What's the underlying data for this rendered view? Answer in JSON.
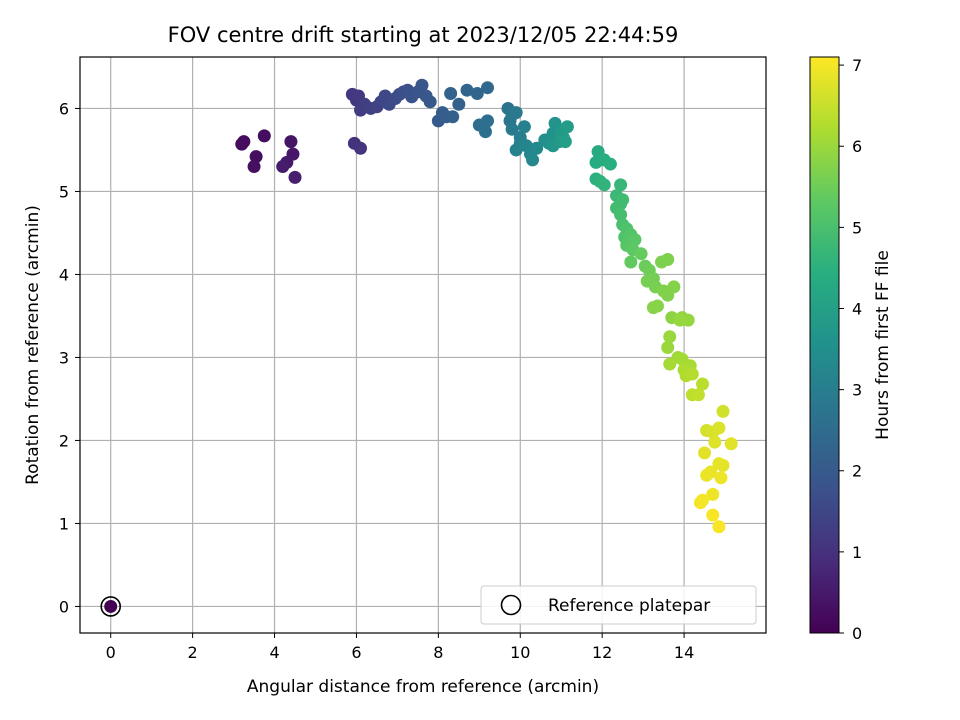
{
  "chart_data": {
    "type": "scatter",
    "title": "FOV centre drift starting at 2023/12/05 22:44:59",
    "xlabel": "Angular distance from reference (arcmin)",
    "ylabel": "Rotation from reference (arcmin)",
    "xlim": [
      -0.75,
      16.0
    ],
    "ylim": [
      -0.32,
      6.62
    ],
    "xticks": [
      0,
      2,
      4,
      6,
      8,
      10,
      12,
      14
    ],
    "yticks": [
      0,
      1,
      2,
      3,
      4,
      5,
      6
    ],
    "grid": true,
    "legend": {
      "placement": "lower-right",
      "entries": [
        "Reference platepar"
      ]
    },
    "reference_point": {
      "x": 0,
      "y": 0
    },
    "colorbar": {
      "label": "Hours from first FF file",
      "colormap": "viridis",
      "range": [
        0,
        7.1
      ],
      "ticks": [
        0,
        1,
        2,
        3,
        4,
        5,
        6,
        7
      ]
    },
    "points": [
      [
        0,
        0,
        0.0
      ],
      [
        3.2,
        5.57,
        0.2
      ],
      [
        3.25,
        5.6,
        0.22
      ],
      [
        3.75,
        5.67,
        0.25
      ],
      [
        3.55,
        5.42,
        0.28
      ],
      [
        3.5,
        5.3,
        0.3
      ],
      [
        4.4,
        5.6,
        0.4
      ],
      [
        4.45,
        5.45,
        0.45
      ],
      [
        4.3,
        5.35,
        0.5
      ],
      [
        4.2,
        5.3,
        0.55
      ],
      [
        4.5,
        5.17,
        0.6
      ],
      [
        5.95,
        5.58,
        1.0
      ],
      [
        6.1,
        5.52,
        1.05
      ],
      [
        5.9,
        6.17,
        1.1
      ],
      [
        6.0,
        6.1,
        1.15
      ],
      [
        6.05,
        6.15,
        1.2
      ],
      [
        6.1,
        5.98,
        1.25
      ],
      [
        6.2,
        6.05,
        1.3
      ],
      [
        6.35,
        6.0,
        1.35
      ],
      [
        6.5,
        6.02,
        1.4
      ],
      [
        6.6,
        6.08,
        1.45
      ],
      [
        6.7,
        6.15,
        1.5
      ],
      [
        6.8,
        6.05,
        1.55
      ],
      [
        6.95,
        6.12,
        1.6
      ],
      [
        7.05,
        6.17,
        1.65
      ],
      [
        7.15,
        6.2,
        1.7
      ],
      [
        7.25,
        6.22,
        1.75
      ],
      [
        7.35,
        6.14,
        1.8
      ],
      [
        7.5,
        6.2,
        1.85
      ],
      [
        7.6,
        6.28,
        1.9
      ],
      [
        7.7,
        6.15,
        1.92
      ],
      [
        7.8,
        6.08,
        1.95
      ],
      [
        8.0,
        5.85,
        2.0
      ],
      [
        8.1,
        5.95,
        2.05
      ],
      [
        8.2,
        5.9,
        2.1
      ],
      [
        8.35,
        5.9,
        2.15
      ],
      [
        8.5,
        6.05,
        2.2
      ],
      [
        8.3,
        6.18,
        2.25
      ],
      [
        8.7,
        6.22,
        2.3
      ],
      [
        8.95,
        6.18,
        2.35
      ],
      [
        9.2,
        6.25,
        2.4
      ],
      [
        9.0,
        5.8,
        2.5
      ],
      [
        9.2,
        5.85,
        2.55
      ],
      [
        9.15,
        5.72,
        2.6
      ],
      [
        9.7,
        6.0,
        2.7
      ],
      [
        9.75,
        5.85,
        2.75
      ],
      [
        9.8,
        5.92,
        2.8
      ],
      [
        9.9,
        5.95,
        2.85
      ],
      [
        9.8,
        5.75,
        2.9
      ],
      [
        10.0,
        5.65,
        3.0
      ],
      [
        10.1,
        5.78,
        3.05
      ],
      [
        10.0,
        5.58,
        3.1
      ],
      [
        9.9,
        5.5,
        3.15
      ],
      [
        10.15,
        5.55,
        3.2
      ],
      [
        10.25,
        5.45,
        3.25
      ],
      [
        10.3,
        5.38,
        3.3
      ],
      [
        10.4,
        5.52,
        3.35
      ],
      [
        10.6,
        5.62,
        3.5
      ],
      [
        10.7,
        5.58,
        3.55
      ],
      [
        10.8,
        5.7,
        3.6
      ],
      [
        10.85,
        5.82,
        3.65
      ],
      [
        10.8,
        5.55,
        3.7
      ],
      [
        10.95,
        5.6,
        3.75
      ],
      [
        11.0,
        5.72,
        3.8
      ],
      [
        11.05,
        5.65,
        3.85
      ],
      [
        11.15,
        5.78,
        3.9
      ],
      [
        11.1,
        5.6,
        3.95
      ],
      [
        11.9,
        5.48,
        4.3
      ],
      [
        11.85,
        5.35,
        4.35
      ],
      [
        12.05,
        5.38,
        4.4
      ],
      [
        12.2,
        5.33,
        4.45
      ],
      [
        11.85,
        5.15,
        4.5
      ],
      [
        11.95,
        5.12,
        4.55
      ],
      [
        12.05,
        5.08,
        4.6
      ],
      [
        12.45,
        5.08,
        4.7
      ],
      [
        12.35,
        4.95,
        4.75
      ],
      [
        12.45,
        4.85,
        4.8
      ],
      [
        12.5,
        4.9,
        4.85
      ],
      [
        12.35,
        4.8,
        4.9
      ],
      [
        12.45,
        4.72,
        4.95
      ],
      [
        12.5,
        4.6,
        5.0
      ],
      [
        12.6,
        4.55,
        5.05
      ],
      [
        12.55,
        4.45,
        5.1
      ],
      [
        12.7,
        4.48,
        5.15
      ],
      [
        12.6,
        4.35,
        5.2
      ],
      [
        12.8,
        4.42,
        5.25
      ],
      [
        12.75,
        4.3,
        5.3
      ],
      [
        12.7,
        4.15,
        5.35
      ],
      [
        12.95,
        4.25,
        5.4
      ],
      [
        13.05,
        4.1,
        5.45
      ],
      [
        13.15,
        4.05,
        5.5
      ],
      [
        13.25,
        3.95,
        5.55
      ],
      [
        13.1,
        3.92,
        5.6
      ],
      [
        13.3,
        3.85,
        5.62
      ],
      [
        13.45,
        4.15,
        5.65
      ],
      [
        13.6,
        4.18,
        5.68
      ],
      [
        13.5,
        3.8,
        5.7
      ],
      [
        13.6,
        3.75,
        5.72
      ],
      [
        13.75,
        3.85,
        5.75
      ],
      [
        13.35,
        3.62,
        5.78
      ],
      [
        13.25,
        3.6,
        5.8
      ],
      [
        13.7,
        3.48,
        5.85
      ],
      [
        13.95,
        3.48,
        5.9
      ],
      [
        14.1,
        3.45,
        5.92
      ],
      [
        13.9,
        3.45,
        5.95
      ],
      [
        13.65,
        3.25,
        5.98
      ],
      [
        13.6,
        3.12,
        6.0
      ],
      [
        13.85,
        3.0,
        6.05
      ],
      [
        13.95,
        2.98,
        6.1
      ],
      [
        13.65,
        2.92,
        6.12
      ],
      [
        14.15,
        2.9,
        6.15
      ],
      [
        14.0,
        2.85,
        6.2
      ],
      [
        14.05,
        2.78,
        6.25
      ],
      [
        14.2,
        2.8,
        6.3
      ],
      [
        14.45,
        2.68,
        6.35
      ],
      [
        14.2,
        2.55,
        6.4
      ],
      [
        14.35,
        2.55,
        6.45
      ],
      [
        14.95,
        2.35,
        6.6
      ],
      [
        14.55,
        2.12,
        6.65
      ],
      [
        14.7,
        2.1,
        6.7
      ],
      [
        14.85,
        2.15,
        6.72
      ],
      [
        14.75,
        1.98,
        6.75
      ],
      [
        15.15,
        1.96,
        6.78
      ],
      [
        14.5,
        1.85,
        6.8
      ],
      [
        14.85,
        1.72,
        6.82
      ],
      [
        14.95,
        1.7,
        6.85
      ],
      [
        14.65,
        1.62,
        6.88
      ],
      [
        14.55,
        1.58,
        6.9
      ],
      [
        14.9,
        1.55,
        6.92
      ],
      [
        14.7,
        1.35,
        6.95
      ],
      [
        14.45,
        1.28,
        6.98
      ],
      [
        14.4,
        1.25,
        7.0
      ],
      [
        14.7,
        1.1,
        7.02
      ],
      [
        14.85,
        0.96,
        7.05
      ]
    ]
  }
}
